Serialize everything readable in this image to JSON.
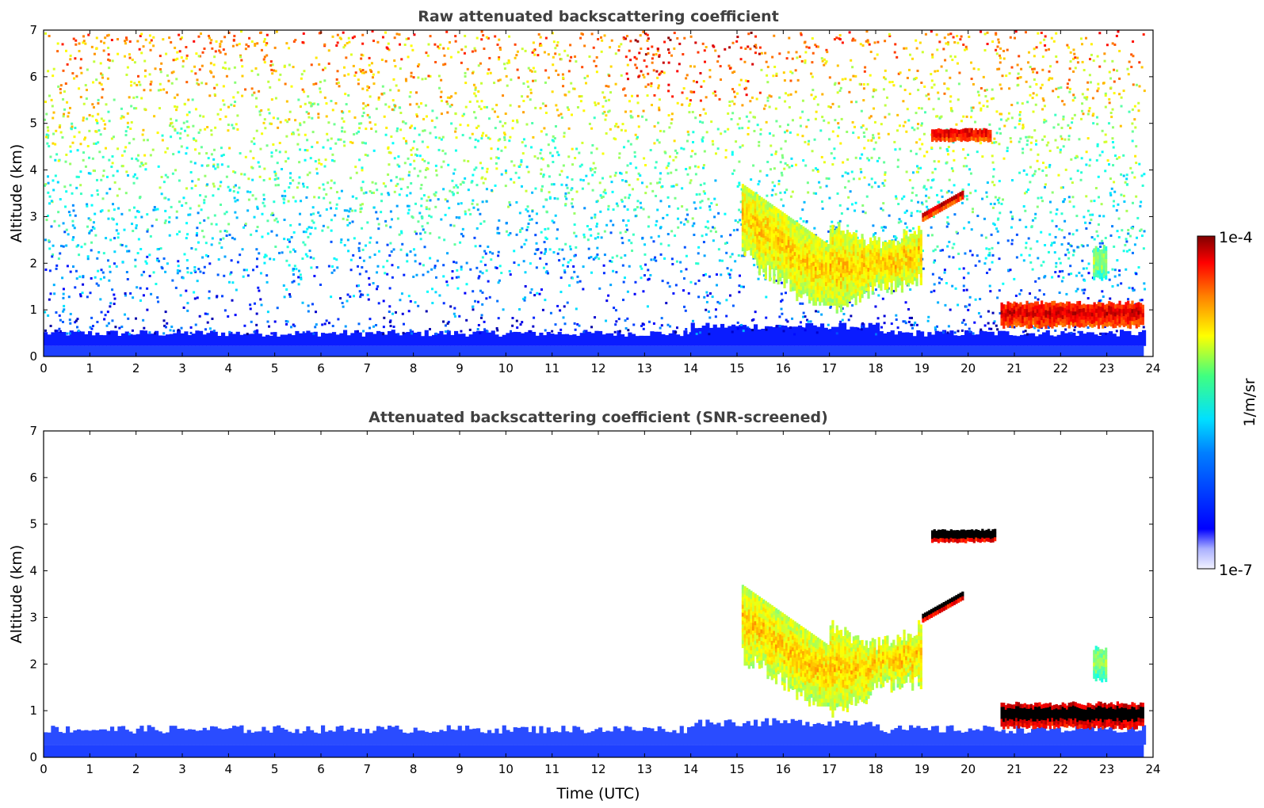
{
  "chart_data": [
    {
      "type": "heatmap",
      "title": "Raw attenuated backscattering coefficient",
      "xlabel": "",
      "ylabel": "Altitude (km)",
      "xlim": [
        0,
        24
      ],
      "ylim": [
        0,
        7
      ],
      "x_ticks": [
        "0",
        "1",
        "2",
        "3",
        "4",
        "5",
        "6",
        "7",
        "8",
        "9",
        "10",
        "11",
        "12",
        "13",
        "14",
        "15",
        "16",
        "17",
        "18",
        "19",
        "20",
        "21",
        "22",
        "23",
        "24"
      ],
      "y_ticks": [
        "0",
        "1",
        "2",
        "3",
        "4",
        "5",
        "6",
        "7"
      ],
      "data_end_hour": 23.8,
      "boundary_layer_top_km": 0.5,
      "noise": "background signal dense in the lower ~1.5 km, sparse noisy pixels increasing toward 7 km",
      "features": [
        {
          "name": "cirrus",
          "t_start": 19.2,
          "t_end": 20.5,
          "z_bottom": 4.6,
          "z_top": 4.9,
          "level": "high"
        },
        {
          "name": "descending ice cloud",
          "t_start": 15.1,
          "t_end": 17.4,
          "z_bottom": 1.1,
          "z_top": 3.7,
          "level": "medium-high"
        },
        {
          "name": "cloud (fall streaks)",
          "t_start": 17.0,
          "t_end": 19.0,
          "z_bottom": 0.8,
          "z_top": 3.0,
          "level": "medium-high"
        },
        {
          "name": "thin layer",
          "t_start": 19.0,
          "t_end": 19.9,
          "z_bottom": 2.9,
          "z_top": 3.6,
          "level": "high"
        },
        {
          "name": "low cloud",
          "t_start": 20.7,
          "t_end": 23.8,
          "z_bottom": 0.6,
          "z_top": 1.2,
          "level": "high"
        },
        {
          "name": "small cloud",
          "t_start": 22.7,
          "t_end": 23.0,
          "z_bottom": 1.6,
          "z_top": 2.4,
          "level": "medium"
        }
      ]
    },
    {
      "type": "heatmap",
      "title": "Attenuated backscattering coefficient (SNR-screened)",
      "xlabel": "Time (UTC)",
      "ylabel": "Altitude (km)",
      "xlim": [
        0,
        24
      ],
      "ylim": [
        0,
        7
      ],
      "x_ticks": [
        "0",
        "1",
        "2",
        "3",
        "4",
        "5",
        "6",
        "7",
        "8",
        "9",
        "10",
        "11",
        "12",
        "13",
        "14",
        "15",
        "16",
        "17",
        "18",
        "19",
        "20",
        "21",
        "22",
        "23",
        "24"
      ],
      "y_ticks": [
        "0",
        "1",
        "2",
        "3",
        "4",
        "5",
        "6",
        "7"
      ],
      "data_end_hour": 23.8,
      "boundary_layer_top_km": 0.6,
      "features": [
        {
          "name": "cirrus",
          "t_start": 19.2,
          "t_end": 20.6,
          "z_bottom": 4.6,
          "z_top": 4.9,
          "level": "saturated"
        },
        {
          "name": "descending ice cloud",
          "t_start": 15.1,
          "t_end": 17.4,
          "z_bottom": 1.1,
          "z_top": 3.7,
          "level": "medium-high"
        },
        {
          "name": "cloud (fall streaks)",
          "t_start": 17.0,
          "t_end": 19.0,
          "z_bottom": 0.8,
          "z_top": 3.0,
          "level": "medium-high"
        },
        {
          "name": "thin layer",
          "t_start": 19.0,
          "t_end": 19.9,
          "z_bottom": 2.9,
          "z_top": 3.6,
          "level": "saturated"
        },
        {
          "name": "low cloud",
          "t_start": 20.7,
          "t_end": 23.8,
          "z_bottom": 0.6,
          "z_top": 1.2,
          "level": "saturated"
        },
        {
          "name": "small cloud",
          "t_start": 22.7,
          "t_end": 23.0,
          "z_bottom": 1.6,
          "z_top": 2.4,
          "level": "medium"
        }
      ]
    }
  ],
  "colorbar": {
    "label": "1/m/sr",
    "max_label": "1e-4",
    "min_label": "1e-7",
    "colormap": "jet",
    "scale": "log"
  },
  "colors": {
    "low": "#0000ff",
    "mid": "#00ffff",
    "high": "#ffff00",
    "max": "#800000",
    "saturated": "#000000"
  }
}
